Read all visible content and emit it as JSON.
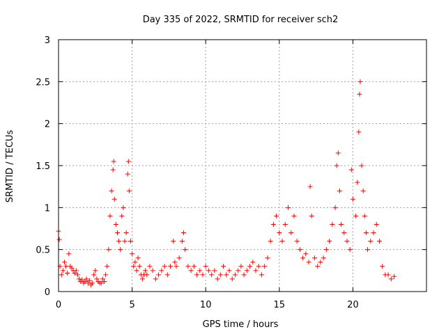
{
  "chart_data": {
    "type": "scatter",
    "title": "Day 335 of 2022, SRMTID for receiver sch2",
    "xlabel": "GPS time / hours",
    "ylabel": "SRMTID / TECUs",
    "xlim": [
      0,
      25
    ],
    "ylim": [
      0,
      3
    ],
    "x_ticks": [
      0,
      5,
      10,
      15,
      20
    ],
    "x_tick_labels": [
      "0",
      "5",
      "10",
      "15",
      "20"
    ],
    "y_ticks": [
      0,
      0.5,
      1,
      1.5,
      2,
      2.5,
      3
    ],
    "y_tick_labels": [
      "0",
      "0.5",
      "1",
      "1.5",
      "2",
      "2.5",
      "3"
    ],
    "grid": true,
    "marker": "+",
    "series": [
      {
        "name": "sch2",
        "color": "#ff0000",
        "x": [
          0.0,
          0.05,
          0.1,
          0.2,
          0.3,
          0.4,
          0.5,
          0.6,
          0.7,
          0.8,
          0.9,
          1.0,
          1.1,
          1.2,
          1.3,
          1.4,
          1.5,
          1.6,
          1.7,
          1.8,
          1.9,
          2.0,
          2.1,
          2.2,
          2.3,
          2.4,
          2.5,
          2.6,
          2.7,
          2.8,
          2.9,
          3.0,
          3.1,
          3.2,
          3.3,
          3.4,
          3.5,
          3.6,
          3.7,
          3.75,
          3.8,
          3.9,
          4.0,
          4.1,
          4.2,
          4.3,
          4.4,
          4.5,
          4.6,
          4.7,
          4.75,
          4.8,
          4.9,
          5.0,
          5.1,
          5.2,
          5.3,
          5.4,
          5.5,
          5.6,
          5.7,
          5.8,
          5.9,
          6.0,
          6.2,
          6.4,
          6.6,
          6.8,
          7.0,
          7.2,
          7.4,
          7.6,
          7.8,
          7.9,
          8.0,
          8.2,
          8.4,
          8.5,
          8.6,
          8.8,
          9.0,
          9.2,
          9.4,
          9.6,
          9.8,
          10.0,
          10.2,
          10.4,
          10.6,
          10.8,
          11.0,
          11.2,
          11.4,
          11.6,
          11.8,
          12.0,
          12.2,
          12.4,
          12.6,
          12.8,
          13.0,
          13.2,
          13.4,
          13.6,
          13.8,
          14.0,
          14.2,
          14.4,
          14.6,
          14.8,
          15.0,
          15.2,
          15.4,
          15.6,
          15.8,
          16.0,
          16.2,
          16.4,
          16.6,
          16.8,
          17.0,
          17.1,
          17.2,
          17.4,
          17.6,
          17.8,
          18.0,
          18.2,
          18.4,
          18.6,
          18.8,
          18.9,
          19.0,
          19.1,
          19.2,
          19.4,
          19.6,
          19.8,
          19.9,
          20.0,
          20.2,
          20.3,
          20.4,
          20.45,
          20.5,
          20.6,
          20.7,
          20.8,
          20.9,
          21.0,
          21.2,
          21.4,
          21.6,
          21.8,
          22.0,
          22.2,
          22.4,
          22.6,
          22.8
        ],
        "y": [
          0.72,
          0.62,
          0.3,
          0.2,
          0.25,
          0.35,
          0.3,
          0.22,
          0.45,
          0.3,
          0.28,
          0.25,
          0.22,
          0.25,
          0.2,
          0.15,
          0.12,
          0.14,
          0.1,
          0.12,
          0.15,
          0.1,
          0.13,
          0.08,
          0.1,
          0.2,
          0.25,
          0.15,
          0.12,
          0.1,
          0.1,
          0.15,
          0.12,
          0.2,
          0.3,
          0.5,
          0.9,
          1.2,
          1.45,
          1.55,
          1.1,
          0.8,
          0.7,
          0.6,
          0.5,
          0.9,
          1.0,
          0.6,
          0.7,
          1.4,
          1.55,
          1.2,
          0.6,
          0.45,
          0.3,
          0.35,
          0.25,
          0.4,
          0.3,
          0.2,
          0.15,
          0.2,
          0.25,
          0.2,
          0.3,
          0.25,
          0.15,
          0.2,
          0.25,
          0.3,
          0.2,
          0.3,
          0.6,
          0.35,
          0.3,
          0.4,
          0.6,
          0.7,
          0.5,
          0.3,
          0.25,
          0.3,
          0.2,
          0.25,
          0.2,
          0.3,
          0.25,
          0.2,
          0.25,
          0.15,
          0.2,
          0.3,
          0.2,
          0.25,
          0.15,
          0.2,
          0.25,
          0.3,
          0.2,
          0.25,
          0.3,
          0.35,
          0.25,
          0.3,
          0.2,
          0.3,
          0.4,
          0.6,
          0.8,
          0.9,
          0.7,
          0.6,
          0.8,
          1.0,
          0.7,
          0.9,
          0.6,
          0.5,
          0.4,
          0.45,
          0.35,
          1.25,
          0.9,
          0.4,
          0.3,
          0.35,
          0.4,
          0.5,
          0.6,
          0.8,
          1.0,
          1.5,
          1.65,
          1.2,
          0.8,
          0.7,
          0.6,
          0.5,
          1.45,
          1.1,
          0.9,
          1.3,
          1.9,
          2.35,
          2.5,
          1.5,
          1.2,
          0.9,
          0.7,
          0.5,
          0.6,
          0.7,
          0.8,
          0.6,
          0.3,
          0.2,
          0.2,
          0.15,
          0.18
        ]
      }
    ]
  }
}
